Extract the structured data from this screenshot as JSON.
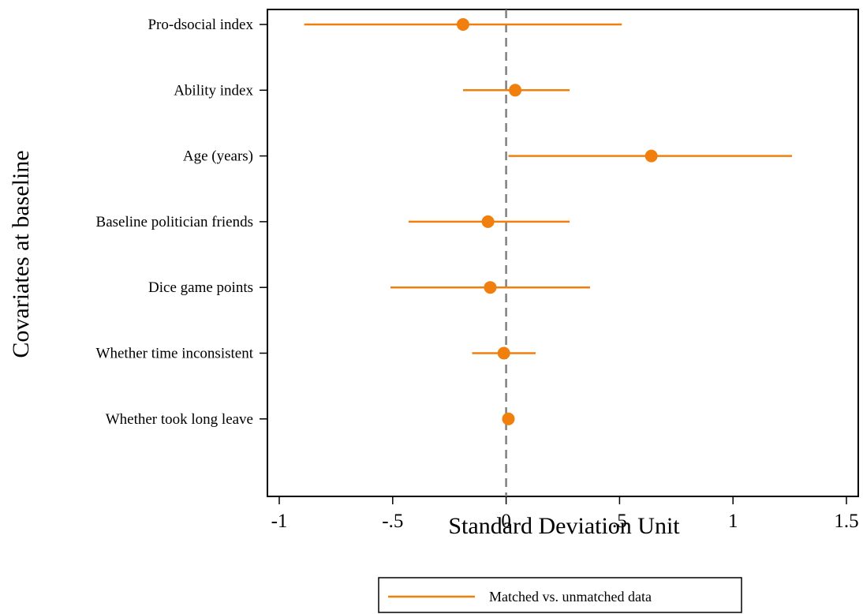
{
  "chart_data": {
    "type": "scatter",
    "subtype": "coefficient-plot",
    "title": "",
    "xlabel": "Standard Deviation Unit",
    "ylabel": "Covariates at baseline",
    "xlim": [
      -1.05,
      1.52
    ],
    "x_ticks": [
      -1,
      -0.5,
      0,
      0.5,
      1,
      1.5
    ],
    "x_tick_labels": [
      "-1",
      "-.5",
      "0",
      ".5",
      "1",
      "1.5"
    ],
    "reference_line": 0,
    "grid": false,
    "legend_position": "bottom",
    "colors": {
      "series": "#f07f0d",
      "reference_line": "#808080",
      "axis": "#000000"
    },
    "categories": [
      "Pro-dsocial index",
      "Ability index",
      "Age (years)",
      "Baseline politician friends",
      "Dice game points",
      "Whether time inconsistent",
      "Whether took long leave"
    ],
    "series": [
      {
        "name": "Matched vs. unmatched data",
        "points": [
          {
            "estimate": -0.19,
            "ci_low": -0.89,
            "ci_high": 0.51
          },
          {
            "estimate": 0.04,
            "ci_low": -0.19,
            "ci_high": 0.28
          },
          {
            "estimate": 0.64,
            "ci_low": 0.01,
            "ci_high": 1.26
          },
          {
            "estimate": -0.08,
            "ci_low": -0.43,
            "ci_high": 0.28
          },
          {
            "estimate": -0.07,
            "ci_low": -0.51,
            "ci_high": 0.37
          },
          {
            "estimate": -0.01,
            "ci_low": -0.15,
            "ci_high": 0.13
          },
          {
            "estimate": 0.01,
            "ci_low": 0.005,
            "ci_high": 0.015
          }
        ]
      }
    ]
  }
}
